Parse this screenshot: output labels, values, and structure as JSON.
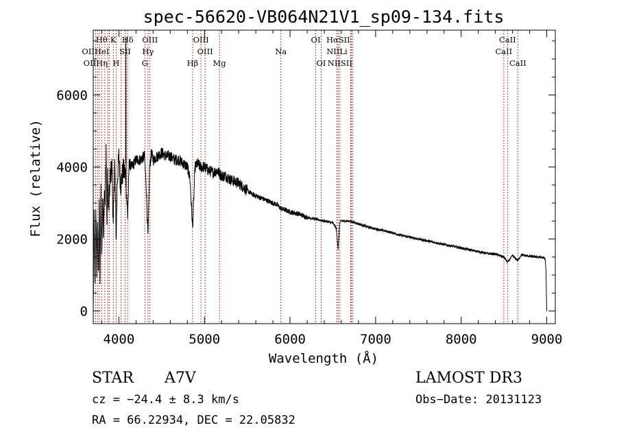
{
  "chart_data": {
    "type": "line",
    "title": "spec-56620-VB064N21V1_sp09-134.fits",
    "xlabel": "Wavelength (Å)",
    "ylabel": "Flux (relative)",
    "xlim": [
      3700,
      9100
    ],
    "ylim": [
      -350,
      7800
    ],
    "x_ticks": [
      4000,
      5000,
      6000,
      7000,
      8000,
      9000
    ],
    "x_tick_labels": [
      "4000",
      "5000",
      "6000",
      "7000",
      "8000",
      "9000"
    ],
    "y_ticks": [
      0,
      2000,
      4000,
      6000
    ],
    "y_tick_labels": [
      "0",
      "2000",
      "4000",
      "6000"
    ],
    "grid": false,
    "line_color": "#000000",
    "marker_color": "#b22222",
    "series": [
      {
        "name": "flux",
        "x": [
          3700,
          3710,
          3720,
          3730,
          3740,
          3750,
          3760,
          3770,
          3780,
          3790,
          3800,
          3810,
          3820,
          3830,
          3840,
          3850,
          3860,
          3870,
          3880,
          3890,
          3900,
          3920,
          3934,
          3950,
          3968,
          3980,
          4000,
          4020,
          4050,
          4080,
          4102,
          4120,
          4150,
          4200,
          4250,
          4300,
          4320,
          4340,
          4360,
          4380,
          4400,
          4450,
          4500,
          4550,
          4600,
          4650,
          4700,
          4750,
          4800,
          4830,
          4861,
          4890,
          4920,
          4950,
          5000,
          5050,
          5100,
          5150,
          5200,
          5250,
          5300,
          5350,
          5400,
          5450,
          5500,
          5550,
          5600,
          5650,
          5700,
          5750,
          5800,
          5850,
          5890,
          5950,
          6000,
          6100,
          6200,
          6300,
          6400,
          6500,
          6540,
          6563,
          6580,
          6600,
          6700,
          6800,
          6900,
          7000,
          7100,
          7200,
          7300,
          7400,
          7500,
          7600,
          7700,
          7800,
          7900,
          8000,
          8100,
          8200,
          8300,
          8400,
          8500,
          8542,
          8600,
          8662,
          8700,
          8800,
          8900,
          8960,
          8980,
          8990,
          9000
        ],
        "values": [
          0,
          2700,
          600,
          3000,
          1200,
          2500,
          900,
          3100,
          800,
          3300,
          1500,
          3200,
          2200,
          3500,
          2900,
          4600,
          2400,
          3900,
          2700,
          3300,
          3800,
          4000,
          2200,
          4200,
          2000,
          3600,
          4300,
          3500,
          3900,
          3800,
          2600,
          4100,
          4000,
          4200,
          4200,
          4300,
          3400,
          2000,
          4000,
          4400,
          4200,
          4300,
          4400,
          4300,
          4300,
          4200,
          4200,
          4100,
          4000,
          3700,
          2300,
          4000,
          4100,
          4000,
          4000,
          3900,
          3850,
          3900,
          3750,
          3750,
          3650,
          3600,
          3550,
          3450,
          3350,
          3250,
          3200,
          3150,
          3100,
          3050,
          3000,
          2950,
          2850,
          2800,
          2750,
          2700,
          2600,
          2550,
          2500,
          2450,
          2300,
          1700,
          2450,
          2500,
          2500,
          2420,
          2340,
          2280,
          2230,
          2170,
          2100,
          2050,
          2000,
          1950,
          1900,
          1850,
          1800,
          1750,
          1700,
          1650,
          1600,
          1580,
          1500,
          1350,
          1540,
          1400,
          1560,
          1520,
          1500,
          1480,
          1450,
          1200,
          0
        ]
      }
    ],
    "spectral_lines": [
      {
        "label": "Hθ",
        "wavelength": 3798,
        "row": 1
      },
      {
        "label": "K",
        "wavelength": 3934,
        "row": 1
      },
      {
        "label": "Hδ",
        "wavelength": 4102,
        "row": 1
      },
      {
        "label": "OIII",
        "wavelength": 4363,
        "row": 1
      },
      {
        "label": "OIII",
        "wavelength": 4959,
        "row": 1
      },
      {
        "label": "OI",
        "wavelength": 6300,
        "row": 1
      },
      {
        "label": "HαSII",
        "wavelength": 6563,
        "row": 1
      },
      {
        "label": "CaII",
        "wavelength": 8542,
        "row": 1
      },
      {
        "label": "OIIHeI",
        "wavelength": 3727,
        "row": 2
      },
      {
        "label": "SII",
        "wavelength": 4072,
        "row": 2
      },
      {
        "label": "Hγ",
        "wavelength": 4340,
        "row": 2
      },
      {
        "label": "OIII",
        "wavelength": 5007,
        "row": 2
      },
      {
        "label": "Na",
        "wavelength": 5893,
        "row": 2
      },
      {
        "label": "NIILi",
        "wavelength": 6548,
        "row": 2
      },
      {
        "label": "CaII",
        "wavelength": 8498,
        "row": 2
      },
      {
        "label": "OIIHη",
        "wavelength": 3727,
        "row": 3
      },
      {
        "label": "H",
        "wavelength": 3968,
        "row": 3
      },
      {
        "label": "G",
        "wavelength": 4304,
        "row": 3
      },
      {
        "label": "Hβ",
        "wavelength": 4861,
        "row": 3
      },
      {
        "label": "Mg",
        "wavelength": 5175,
        "row": 3
      },
      {
        "label": "OI",
        "wavelength": 6364,
        "row": 3
      },
      {
        "label": "NIISII",
        "wavelength": 6583,
        "row": 3
      },
      {
        "label": "CaII",
        "wavelength": 8662,
        "row": 3
      }
    ],
    "marker_wavelengths": [
      3727,
      3750,
      3771,
      3798,
      3835,
      3870,
      3889,
      3934,
      3968,
      4026,
      4072,
      4102,
      4304,
      4340,
      4363,
      4861,
      4959,
      5007,
      5175,
      5893,
      6300,
      6364,
      6548,
      6563,
      6583,
      6708,
      6717,
      6731,
      8498,
      8542,
      8662
    ]
  },
  "info": {
    "class_label": "STAR",
    "subclass": "A7V",
    "survey": "LAMOST DR3",
    "cz": "cz = −24.4 ± 8.3 km/s",
    "obs_date": "Obs−Date: 20131123",
    "coords": "RA =  66.22934, DEC =  22.05832"
  }
}
